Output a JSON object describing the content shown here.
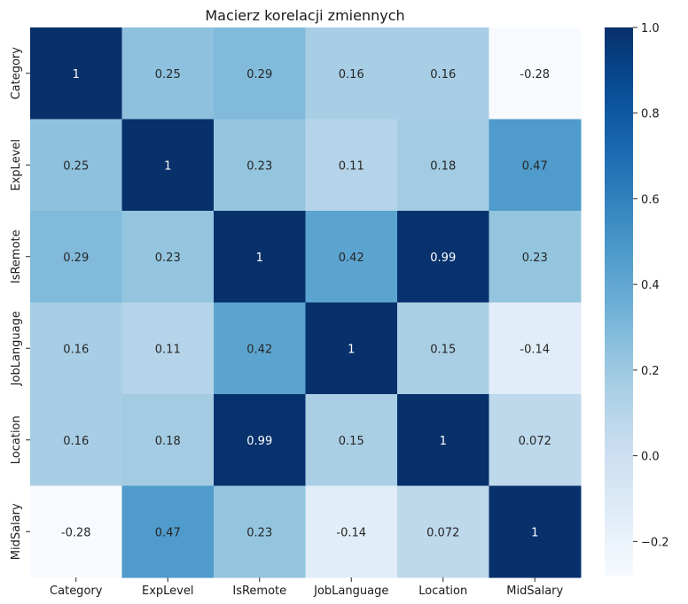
{
  "chart_data": {
    "type": "heatmap",
    "title": "Macierz korelacji zmiennych",
    "xlabel": "",
    "ylabel": "",
    "x_categories": [
      "Category",
      "ExpLevel",
      "IsRemote",
      "JobLanguage",
      "Location",
      "MidSalary"
    ],
    "y_categories": [
      "Category",
      "ExpLevel",
      "IsRemote",
      "JobLanguage",
      "Location",
      "MidSalary"
    ],
    "values": [
      [
        1,
        0.25,
        0.29,
        0.16,
        0.16,
        -0.28
      ],
      [
        0.25,
        1,
        0.23,
        0.11,
        0.18,
        0.47
      ],
      [
        0.29,
        0.23,
        1,
        0.42,
        0.99,
        0.23
      ],
      [
        0.16,
        0.11,
        0.42,
        1,
        0.15,
        -0.14
      ],
      [
        0.16,
        0.18,
        0.99,
        0.15,
        1,
        0.072
      ],
      [
        -0.28,
        0.47,
        0.23,
        -0.14,
        0.072,
        1
      ]
    ],
    "annotations": [
      [
        "1",
        "0.25",
        "0.29",
        "0.16",
        "0.16",
        "-0.28"
      ],
      [
        "0.25",
        "1",
        "0.23",
        "0.11",
        "0.18",
        "0.47"
      ],
      [
        "0.29",
        "0.23",
        "1",
        "0.42",
        "0.99",
        "0.23"
      ],
      [
        "0.16",
        "0.11",
        "0.42",
        "1",
        "0.15",
        "-0.14"
      ],
      [
        "0.16",
        "0.18",
        "0.99",
        "0.15",
        "1",
        "0.072"
      ],
      [
        "-0.28",
        "0.47",
        "0.23",
        "-0.14",
        "0.072",
        "1"
      ]
    ],
    "colormap": "Blues",
    "vmin": -0.28,
    "vmax": 1.0,
    "colorbar_ticks": [
      1.0,
      0.8,
      0.6,
      0.4,
      0.2,
      0.0,
      -0.2
    ],
    "colorbar_tick_labels": [
      "1.0",
      "0.8",
      "0.6",
      "0.4",
      "0.2",
      "0.0",
      "−0.2"
    ],
    "colors": {
      "low": "#f7fbff",
      "high": "#08306b",
      "text_dark": "#262626",
      "text_light": "#ffffff"
    }
  }
}
